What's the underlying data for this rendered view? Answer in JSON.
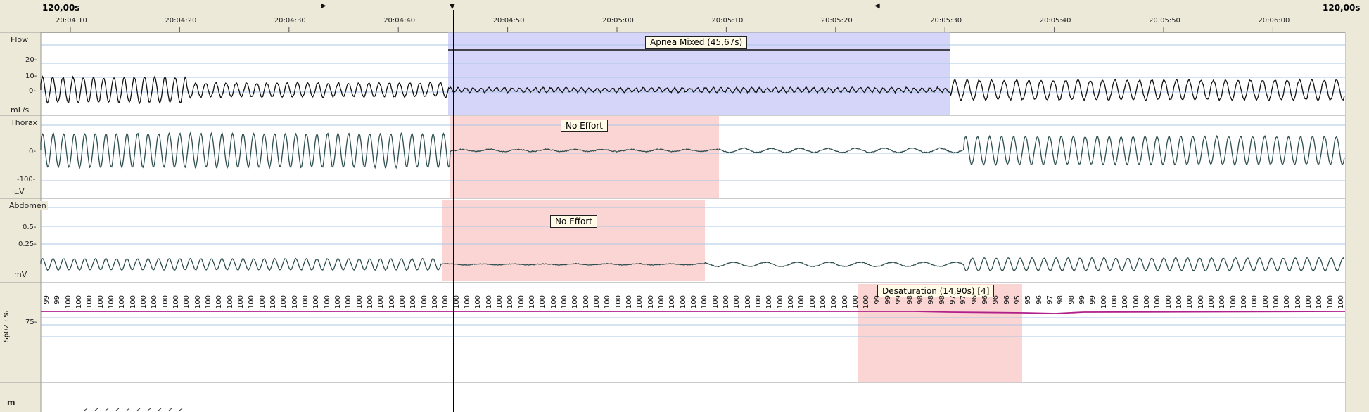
{
  "header": {
    "window_left": "120,00s",
    "window_right": "120,00s",
    "time_ticks": [
      "20:04:10",
      "20:04:20",
      "20:04:30",
      "20:04:40",
      "20:04:50",
      "20:05:00",
      "20:05:10",
      "20:05:20",
      "20:05:30",
      "20:05:40",
      "20:05:50",
      "20:06:00"
    ]
  },
  "channels": {
    "flow": {
      "name": "Flow",
      "unit": "mL/s",
      "ticks": [
        "20-",
        "10-",
        "0-"
      ]
    },
    "thorax": {
      "name": "Thorax",
      "unit": "µV",
      "ticks": [
        "0-",
        "-100-"
      ]
    },
    "abdomen": {
      "name": "Abdomen",
      "unit": "mV",
      "ticks": [
        "0.5-",
        "0.25-"
      ]
    },
    "spo2": {
      "name": "Sp02 : %",
      "ticks": [
        "75-"
      ]
    },
    "bottom": {
      "name": "m"
    }
  },
  "events": [
    {
      "label": "Apnea Mixed (45,67s)",
      "color": "#d5d5fa"
    },
    {
      "label": "No Effort",
      "color": "#fbd4d4"
    },
    {
      "label": "No Effort",
      "color": "#fbd4d4"
    },
    {
      "label": "Desaturation (14,90s) [4]",
      "color": "#fbd4d4"
    }
  ],
  "spo2_values": [
    "99",
    "99",
    "100",
    "100",
    "100",
    "100",
    "100",
    "100",
    "100",
    "100",
    "100",
    "100",
    "100",
    "100",
    "100",
    "100",
    "100",
    "100",
    "100",
    "100",
    "100",
    "100",
    "100",
    "100",
    "100",
    "100",
    "100",
    "100",
    "100",
    "100",
    "100",
    "100",
    "100",
    "100",
    "100",
    "100",
    "100",
    "100",
    "100",
    "100",
    "100",
    "100",
    "100",
    "100",
    "100",
    "100",
    "100",
    "100",
    "100",
    "100",
    "100",
    "100",
    "100",
    "100",
    "100",
    "100",
    "100",
    "100",
    "100",
    "100",
    "100",
    "100",
    "100",
    "100",
    "100",
    "100",
    "100",
    "100",
    "100",
    "100",
    "100",
    "100",
    "100",
    "100",
    "100",
    "100",
    "100",
    "99",
    "99",
    "99",
    "98",
    "98",
    "98",
    "98",
    "97",
    "97",
    "96",
    "96",
    "96",
    "96",
    "95",
    "95",
    "96",
    "97",
    "98",
    "98",
    "99",
    "99",
    "100",
    "100",
    "100",
    "100",
    "100",
    "100",
    "100",
    "100",
    "100",
    "100",
    "100",
    "100",
    "100",
    "100",
    "100",
    "100",
    "100",
    "100",
    "100",
    "100",
    "100",
    "100",
    "100"
  ],
  "colors": {
    "flow_trace": "#111111",
    "effort_trace": "#2f4f4f",
    "spo2_trace": "#b0208a",
    "grid": "#a9c6e6",
    "panel_bg": "#ece9d8"
  }
}
